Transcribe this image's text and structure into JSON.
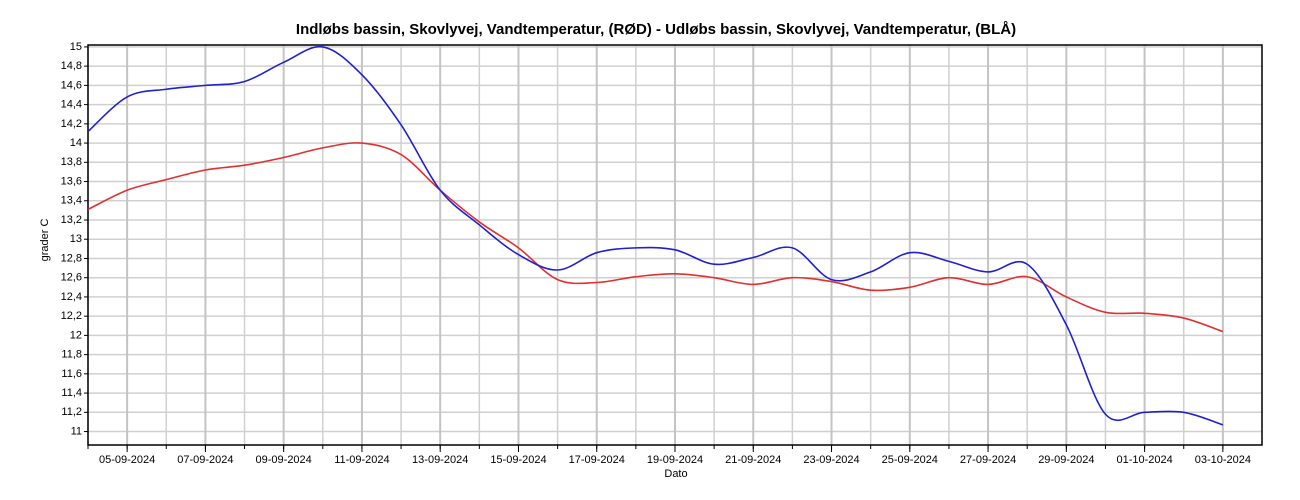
{
  "chart_data": {
    "type": "line",
    "title": "Indløbs bassin, Skovlyvej, Vandtemperatur, (RØD)  -  Udløbs bassin, Skovlyvej, Vandtemperatur, (BLÅ)",
    "xlabel": "Dato",
    "ylabel": "grader C",
    "x": [
      "2024-09-04",
      "2024-09-05",
      "2024-09-06",
      "2024-09-07",
      "2024-09-08",
      "2024-09-09",
      "2024-09-10",
      "2024-09-11",
      "2024-09-12",
      "2024-09-13",
      "2024-09-14",
      "2024-09-15",
      "2024-09-16",
      "2024-09-17",
      "2024-09-18",
      "2024-09-19",
      "2024-09-20",
      "2024-09-21",
      "2024-09-22",
      "2024-09-23",
      "2024-09-24",
      "2024-09-25",
      "2024-09-26",
      "2024-09-27",
      "2024-09-28",
      "2024-09-29",
      "2024-09-30",
      "2024-10-01",
      "2024-10-02",
      "2024-10-03"
    ],
    "series": [
      {
        "color": "#e03030",
        "values": [
          13.31,
          13.51,
          13.62,
          13.72,
          13.77,
          13.85,
          13.95,
          14.0,
          13.88,
          13.51,
          13.18,
          12.91,
          12.58,
          12.55,
          12.61,
          12.64,
          12.6,
          12.53,
          12.6,
          12.56,
          12.47,
          12.5,
          12.6,
          12.53,
          12.61,
          12.4,
          12.24,
          12.23,
          12.18,
          12.04
        ]
      },
      {
        "color": "#2020d0",
        "values": [
          14.12,
          14.48,
          14.56,
          14.6,
          14.64,
          14.84,
          15.0,
          14.71,
          14.19,
          13.51,
          13.15,
          12.84,
          12.68,
          12.86,
          12.91,
          12.89,
          12.74,
          12.81,
          12.91,
          12.58,
          12.66,
          12.86,
          12.77,
          12.66,
          12.74,
          12.11,
          11.18,
          11.2,
          11.2,
          11.07
        ]
      }
    ],
    "xlim": [
      "2024-09-04",
      "2024-10-04"
    ],
    "xticks": [
      {
        "value": "2024-09-05",
        "label": "05-09-2024"
      },
      {
        "value": "2024-09-07",
        "label": "07-09-2024"
      },
      {
        "value": "2024-09-09",
        "label": "09-09-2024"
      },
      {
        "value": "2024-09-11",
        "label": "11-09-2024"
      },
      {
        "value": "2024-09-13",
        "label": "13-09-2024"
      },
      {
        "value": "2024-09-15",
        "label": "15-09-2024"
      },
      {
        "value": "2024-09-17",
        "label": "17-09-2024"
      },
      {
        "value": "2024-09-19",
        "label": "19-09-2024"
      },
      {
        "value": "2024-09-21",
        "label": "21-09-2024"
      },
      {
        "value": "2024-09-23",
        "label": "23-09-2024"
      },
      {
        "value": "2024-09-25",
        "label": "25-09-2024"
      },
      {
        "value": "2024-09-27",
        "label": "27-09-2024"
      },
      {
        "value": "2024-09-29",
        "label": "29-09-2024"
      },
      {
        "value": "2024-10-01",
        "label": "01-10-2024"
      },
      {
        "value": "2024-10-03",
        "label": "03-10-2024"
      }
    ],
    "ylim": [
      10.86,
      15.02
    ],
    "yticks": [
      11,
      {
        "value": 11.2,
        "label": "11,2"
      },
      {
        "value": 11.4,
        "label": "11,4"
      },
      {
        "value": 11.6,
        "label": "11,6"
      },
      {
        "value": 11.8,
        "label": "11,8"
      },
      12,
      {
        "value": 12.2,
        "label": "12,2"
      },
      {
        "value": 12.4,
        "label": "12,4"
      },
      {
        "value": 12.6,
        "label": "12,6"
      },
      {
        "value": 12.8,
        "label": "12,8"
      },
      13,
      {
        "value": 13.2,
        "label": "13,2"
      },
      {
        "value": 13.4,
        "label": "13,4"
      },
      {
        "value": 13.6,
        "label": "13,6"
      },
      {
        "value": 13.8,
        "label": "13,8"
      },
      14,
      {
        "value": 14.2,
        "label": "14,2"
      },
      {
        "value": 14.4,
        "label": "14,4"
      },
      {
        "value": 14.6,
        "label": "14,6"
      },
      {
        "value": 14.8,
        "label": "14,8"
      },
      15
    ],
    "grid": true
  }
}
